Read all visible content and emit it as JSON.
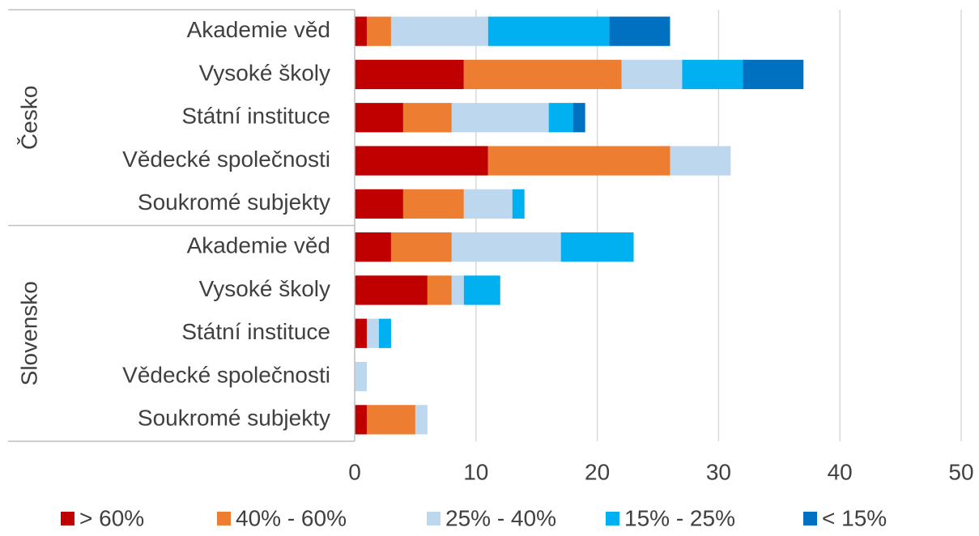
{
  "chart_data": {
    "type": "stacked_bar_horizontal",
    "groups": [
      {
        "name": "Česko",
        "categories": [
          "Akademie věd",
          "Vysoké školy",
          "Státní instituce",
          "Vědecké společnosti",
          "Soukromé subjekty"
        ]
      },
      {
        "name": "Slovensko",
        "categories": [
          "Akademie věd",
          "Vysoké školy",
          "Státní instituce",
          "Vědecké společnosti",
          "Soukromé subjekty"
        ]
      }
    ],
    "series": [
      {
        "name": "> 60%",
        "color": "#c00000",
        "values": [
          1,
          9,
          4,
          11,
          4,
          3,
          6,
          1,
          0,
          1
        ]
      },
      {
        "name": "40% - 60%",
        "color": "#ed7d31",
        "values": [
          2,
          13,
          4,
          15,
          5,
          5,
          2,
          0,
          0,
          4
        ]
      },
      {
        "name": "25% - 40%",
        "color": "#bdd7ee",
        "values": [
          8,
          5,
          8,
          5,
          4,
          9,
          1,
          1,
          1,
          1
        ]
      },
      {
        "name": "15% - 25%",
        "color": "#00b0f0",
        "values": [
          10,
          5,
          2,
          0,
          1,
          6,
          3,
          1,
          0,
          0
        ]
      },
      {
        "name": "< 15%",
        "color": "#0070c0",
        "values": [
          5,
          5,
          1,
          0,
          0,
          0,
          0,
          0,
          0,
          0
        ]
      }
    ],
    "xlim": [
      0,
      50
    ],
    "xticks": [
      0,
      10,
      20,
      30,
      40,
      50
    ],
    "grid": true,
    "legend": "bottom"
  }
}
